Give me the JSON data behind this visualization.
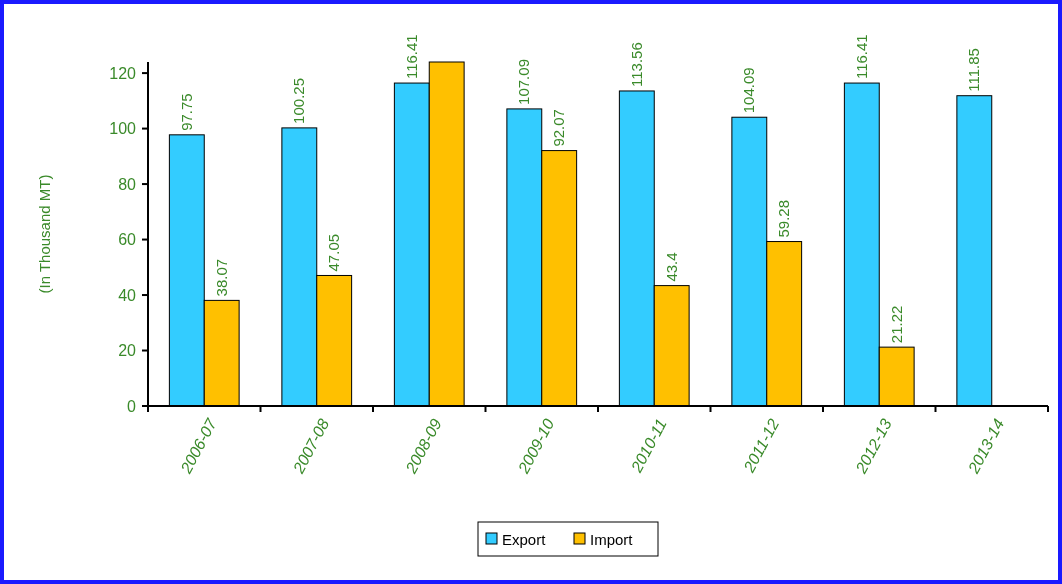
{
  "chart_data": {
    "type": "bar",
    "ylabel": "(In Thousand MT)",
    "categories": [
      "2006-07",
      "2007-08",
      "2008-09",
      "2009-10",
      "2010-11",
      "2011-12",
      "2012-13",
      "2013-14"
    ],
    "series": [
      {
        "name": "Export",
        "color": "#33ccff",
        "values": [
          97.75,
          100.25,
          116.41,
          107.09,
          113.56,
          104.09,
          116.41,
          111.85
        ],
        "value_labels": [
          "97.75",
          "100.25",
          "116.41",
          "107.09",
          "113.56",
          "104.09",
          "116.41",
          "111.85"
        ]
      },
      {
        "name": "Import",
        "color": "#ffc000",
        "values": [
          38.07,
          47.05,
          124,
          92.07,
          43.4,
          59.28,
          21.22,
          null
        ],
        "value_labels": [
          "38.07",
          "47.05",
          null,
          "92.07",
          "43.4",
          "59.28",
          "21.22",
          null
        ]
      }
    ],
    "ylim": [
      0,
      124
    ],
    "yticks": [
      0,
      20,
      40,
      60,
      80,
      100,
      120
    ],
    "grid": false,
    "legend": "bottom"
  }
}
